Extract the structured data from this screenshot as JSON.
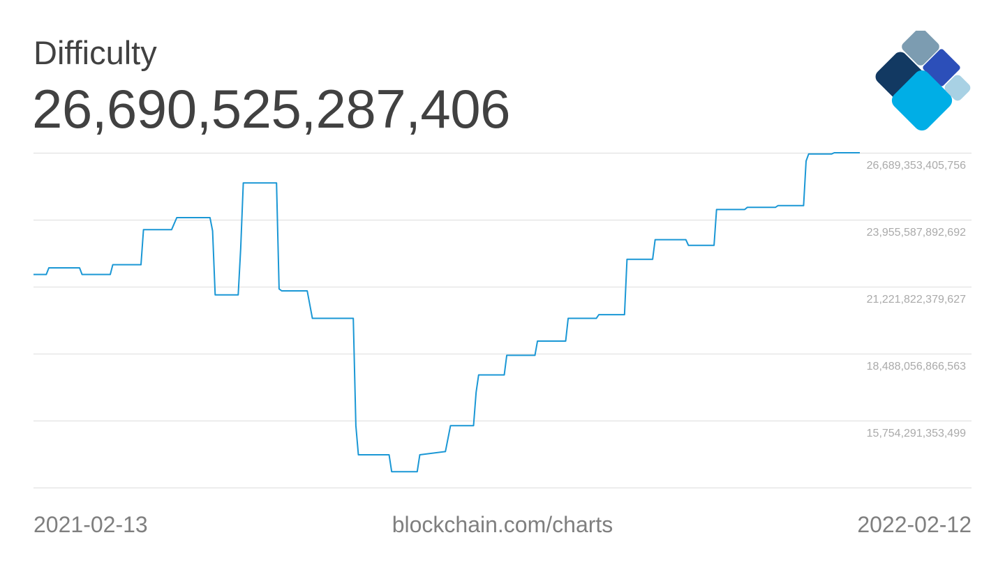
{
  "header": {
    "title": "Difficulty",
    "current_value": "26,690,525,287,406"
  },
  "footer": {
    "start_date": "2021-02-13",
    "source": "blockchain.com/charts",
    "end_date": "2022-02-12"
  },
  "logo": {
    "icon": "blockchain-diamond-logo-icon",
    "colors": [
      "#7c9cb1",
      "#123962",
      "#2c4fb9",
      "#00aee6",
      "#a8d1e4"
    ]
  },
  "chart_data": {
    "type": "line",
    "title": "Difficulty",
    "x_range": [
      "2021-02-13",
      "2022-02-12"
    ],
    "y_ticks": [
      26689353405756,
      23955587892692,
      21221822379627,
      18488056866563,
      15754291353499
    ],
    "y_tick_labels": [
      "26,689,353,405,756",
      "23,955,587,892,692",
      "21,221,822,379,627",
      "18,488,056,866,563",
      "15,754,291,353,499"
    ],
    "ylim": [
      13020525840435,
      26689353405756
    ],
    "grid": true,
    "line_color": "#1a97d5",
    "grid_color": "#dddddd",
    "tick_color": "#aaaaaa",
    "series": [
      {
        "values": [
          [
            "2021-02-13",
            21720000000000.0
          ],
          [
            "2021-02-18",
            21720000000000.0
          ],
          [
            "2021-02-19",
            21990000000000.0
          ],
          [
            "2021-03-03",
            21990000000000.0
          ],
          [
            "2021-03-04",
            21720000000000.0
          ],
          [
            "2021-03-15",
            21720000000000.0
          ],
          [
            "2021-03-16",
            22120000000000.0
          ],
          [
            "2021-03-27",
            22120000000000.0
          ],
          [
            "2021-03-28",
            23550000000000.0
          ],
          [
            "2021-04-08",
            23550000000000.0
          ],
          [
            "2021-04-10",
            24040000000000.0
          ],
          [
            "2021-04-23",
            24040000000000.0
          ],
          [
            "2021-04-24",
            23500000000000.0
          ],
          [
            "2021-04-25",
            20890000000000.0
          ],
          [
            "2021-05-04",
            20890000000000.0
          ],
          [
            "2021-05-05",
            22800000000000.0
          ],
          [
            "2021-05-06",
            25460000000000.0
          ],
          [
            "2021-05-19",
            25460000000000.0
          ],
          [
            "2021-05-20",
            21130000000000.0
          ],
          [
            "2021-05-21",
            21050000000000.0
          ],
          [
            "2021-05-31",
            21050000000000.0
          ],
          [
            "2021-06-02",
            19930000000000.0
          ],
          [
            "2021-06-18",
            19930000000000.0
          ],
          [
            "2021-06-19",
            15550000000000.0
          ],
          [
            "2021-06-20",
            14360000000000.0
          ],
          [
            "2021-07-02",
            14360000000000.0
          ],
          [
            "2021-07-03",
            13670000000000.0
          ],
          [
            "2021-07-13",
            13670000000000.0
          ],
          [
            "2021-07-14",
            14360000000000.0
          ],
          [
            "2021-07-24",
            14490000000000.0
          ],
          [
            "2021-07-26",
            15550000000000.0
          ],
          [
            "2021-08-04",
            15550000000000.0
          ],
          [
            "2021-08-05",
            16910000000000.0
          ],
          [
            "2021-08-06",
            17620000000000.0
          ],
          [
            "2021-08-16",
            17620000000000.0
          ],
          [
            "2021-08-17",
            18420000000000.0
          ],
          [
            "2021-08-28",
            18420000000000.0
          ],
          [
            "2021-08-29",
            19000000000000.0
          ],
          [
            "2021-09-09",
            19000000000000.0
          ],
          [
            "2021-09-10",
            19930000000000.0
          ],
          [
            "2021-09-21",
            19930000000000.0
          ],
          [
            "2021-09-22",
            20080000000000.0
          ],
          [
            "2021-10-02",
            20080000000000.0
          ],
          [
            "2021-10-03",
            22340000000000.0
          ],
          [
            "2021-10-13",
            22340000000000.0
          ],
          [
            "2021-10-14",
            23140000000000.0
          ],
          [
            "2021-10-26",
            23140000000000.0
          ],
          [
            "2021-10-27",
            22910000000000.0
          ],
          [
            "2021-11-06",
            22910000000000.0
          ],
          [
            "2021-11-07",
            24370000000000.0
          ],
          [
            "2021-11-18",
            24370000000000.0
          ],
          [
            "2021-11-19",
            24460000000000.0
          ],
          [
            "2021-11-30",
            24460000000000.0
          ],
          [
            "2021-12-01",
            24530000000000.0
          ],
          [
            "2021-12-11",
            24530000000000.0
          ],
          [
            "2021-12-12",
            26350000000000.0
          ],
          [
            "2021-12-13",
            26640000000000.0
          ],
          [
            "2021-12-22",
            26640000000000.0
          ],
          [
            "2021-12-23",
            26690000000000.0
          ],
          [
            "2022-01-02",
            26690000000000.0
          ]
        ]
      }
    ]
  }
}
